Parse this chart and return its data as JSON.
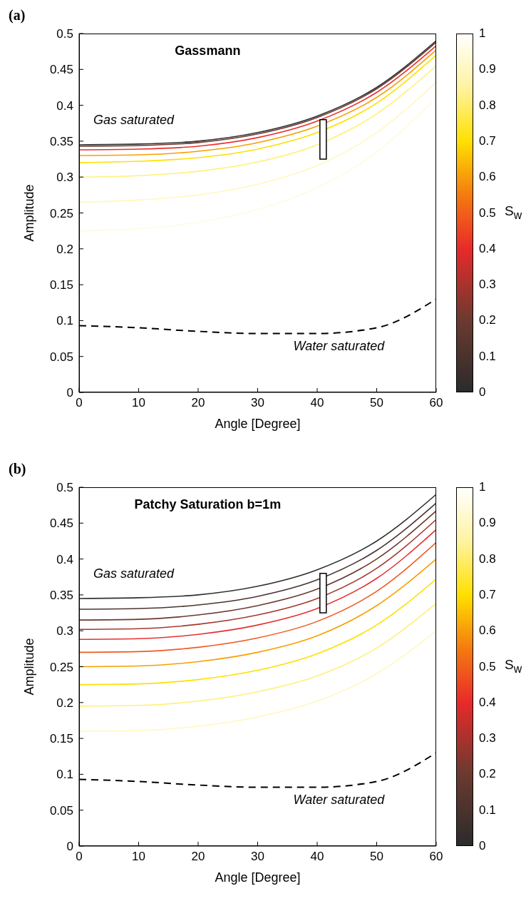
{
  "chart_data": [
    {
      "type": "line",
      "title": "Gassmann",
      "xlabel": "Angle [Degree]",
      "ylabel": "Amplitude",
      "clabel": "S$_{w}$",
      "annotations": [
        "(a)",
        "Gas saturated",
        "Water saturated"
      ],
      "x": [
        0,
        10,
        20,
        30,
        40,
        50,
        60
      ],
      "xlim": [
        0,
        60
      ],
      "xticks": [
        0,
        10,
        20,
        30,
        40,
        50,
        60
      ],
      "ylim": [
        0,
        0.5
      ],
      "yticks": [
        0,
        0.05,
        0.1,
        0.15,
        0.2,
        0.25,
        0.3,
        0.35,
        0.4,
        0.45,
        0.5
      ],
      "clim": [
        0,
        1
      ],
      "cticks": [
        0,
        0.1,
        0.2,
        0.3,
        0.4,
        0.5,
        0.6,
        0.7,
        0.8,
        0.9,
        1
      ],
      "legend": false,
      "series": [
        {
          "color": "#fffbe0",
          "values": [
            0.225,
            0.228,
            0.237,
            0.255,
            0.285,
            0.335,
            0.41
          ]
        },
        {
          "color": "#fff8c0",
          "values": [
            0.265,
            0.268,
            0.275,
            0.29,
            0.316,
            0.362,
            0.432
          ]
        },
        {
          "color": "#fff07a",
          "values": [
            0.3,
            0.302,
            0.308,
            0.321,
            0.345,
            0.388,
            0.455
          ]
        },
        {
          "color": "#ffe000",
          "values": [
            0.32,
            0.322,
            0.327,
            0.339,
            0.362,
            0.403,
            0.47
          ]
        },
        {
          "color": "#f7a000",
          "values": [
            0.33,
            0.331,
            0.336,
            0.348,
            0.371,
            0.411,
            0.477
          ]
        },
        {
          "color": "#e83030",
          "values": [
            0.338,
            0.339,
            0.343,
            0.355,
            0.378,
            0.418,
            0.483
          ]
        },
        {
          "color": "#6b3a30",
          "values": [
            0.343,
            0.344,
            0.348,
            0.36,
            0.383,
            0.423,
            0.488
          ]
        },
        {
          "color": "#303030",
          "values": [
            0.345,
            0.346,
            0.35,
            0.362,
            0.385,
            0.425,
            0.49
          ]
        },
        {
          "color": "#000000",
          "line_style": "dashed",
          "values": [
            0.093,
            0.09,
            0.085,
            0.082,
            0.082,
            0.09,
            0.13
          ]
        },
        {
          "type": "bar",
          "x": [
            41
          ],
          "base": [
            0.325
          ],
          "color": "#ffffff",
          "values": [
            0.055
          ]
        }
      ]
    },
    {
      "type": "line",
      "title": "Patchy Saturation b=1m",
      "xlabel": "Angle [Degree]",
      "ylabel": "Amplitude",
      "clabel": "S$_{w}$",
      "annotations": [
        "(b)",
        "Gas saturated",
        "Water saturated"
      ],
      "x": [
        0,
        10,
        20,
        30,
        40,
        50,
        60
      ],
      "xlim": [
        0,
        60
      ],
      "xticks": [
        0,
        10,
        20,
        30,
        40,
        50,
        60
      ],
      "ylim": [
        0,
        0.5
      ],
      "yticks": [
        0,
        0.05,
        0.1,
        0.15,
        0.2,
        0.25,
        0.3,
        0.35,
        0.4,
        0.45,
        0.5
      ],
      "clim": [
        0,
        1
      ],
      "cticks": [
        0,
        0.1,
        0.2,
        0.3,
        0.4,
        0.5,
        0.6,
        0.7,
        0.8,
        0.9,
        1
      ],
      "legend": false,
      "series": [
        {
          "color": "#fff8c0",
          "values": [
            0.16,
            0.161,
            0.167,
            0.18,
            0.202,
            0.24,
            0.3
          ]
        },
        {
          "color": "#fff07a",
          "values": [
            0.195,
            0.196,
            0.202,
            0.215,
            0.237,
            0.276,
            0.338
          ]
        },
        {
          "color": "#ffe000",
          "values": [
            0.225,
            0.226,
            0.232,
            0.245,
            0.268,
            0.308,
            0.372
          ]
        },
        {
          "color": "#f7a000",
          "values": [
            0.25,
            0.251,
            0.257,
            0.27,
            0.293,
            0.335,
            0.4
          ]
        },
        {
          "color": "#f05a20",
          "values": [
            0.27,
            0.271,
            0.277,
            0.29,
            0.313,
            0.355,
            0.423
          ]
        },
        {
          "color": "#e83030",
          "values": [
            0.288,
            0.289,
            0.295,
            0.308,
            0.331,
            0.373,
            0.441
          ]
        },
        {
          "color": "#a33a30",
          "values": [
            0.302,
            0.303,
            0.309,
            0.322,
            0.345,
            0.387,
            0.455
          ]
        },
        {
          "color": "#6b3a30",
          "values": [
            0.315,
            0.316,
            0.322,
            0.335,
            0.358,
            0.4,
            0.467
          ]
        },
        {
          "color": "#4a3530",
          "values": [
            0.33,
            0.331,
            0.336,
            0.348,
            0.371,
            0.412,
            0.478
          ]
        },
        {
          "color": "#303030",
          "values": [
            0.345,
            0.346,
            0.35,
            0.362,
            0.385,
            0.425,
            0.49
          ]
        },
        {
          "color": "#000000",
          "line_style": "dashed",
          "values": [
            0.093,
            0.09,
            0.085,
            0.082,
            0.082,
            0.09,
            0.13
          ]
        },
        {
          "type": "bar",
          "x": [
            41
          ],
          "base": [
            0.325
          ],
          "color": "#ffffff",
          "values": [
            0.055
          ]
        }
      ]
    }
  ]
}
